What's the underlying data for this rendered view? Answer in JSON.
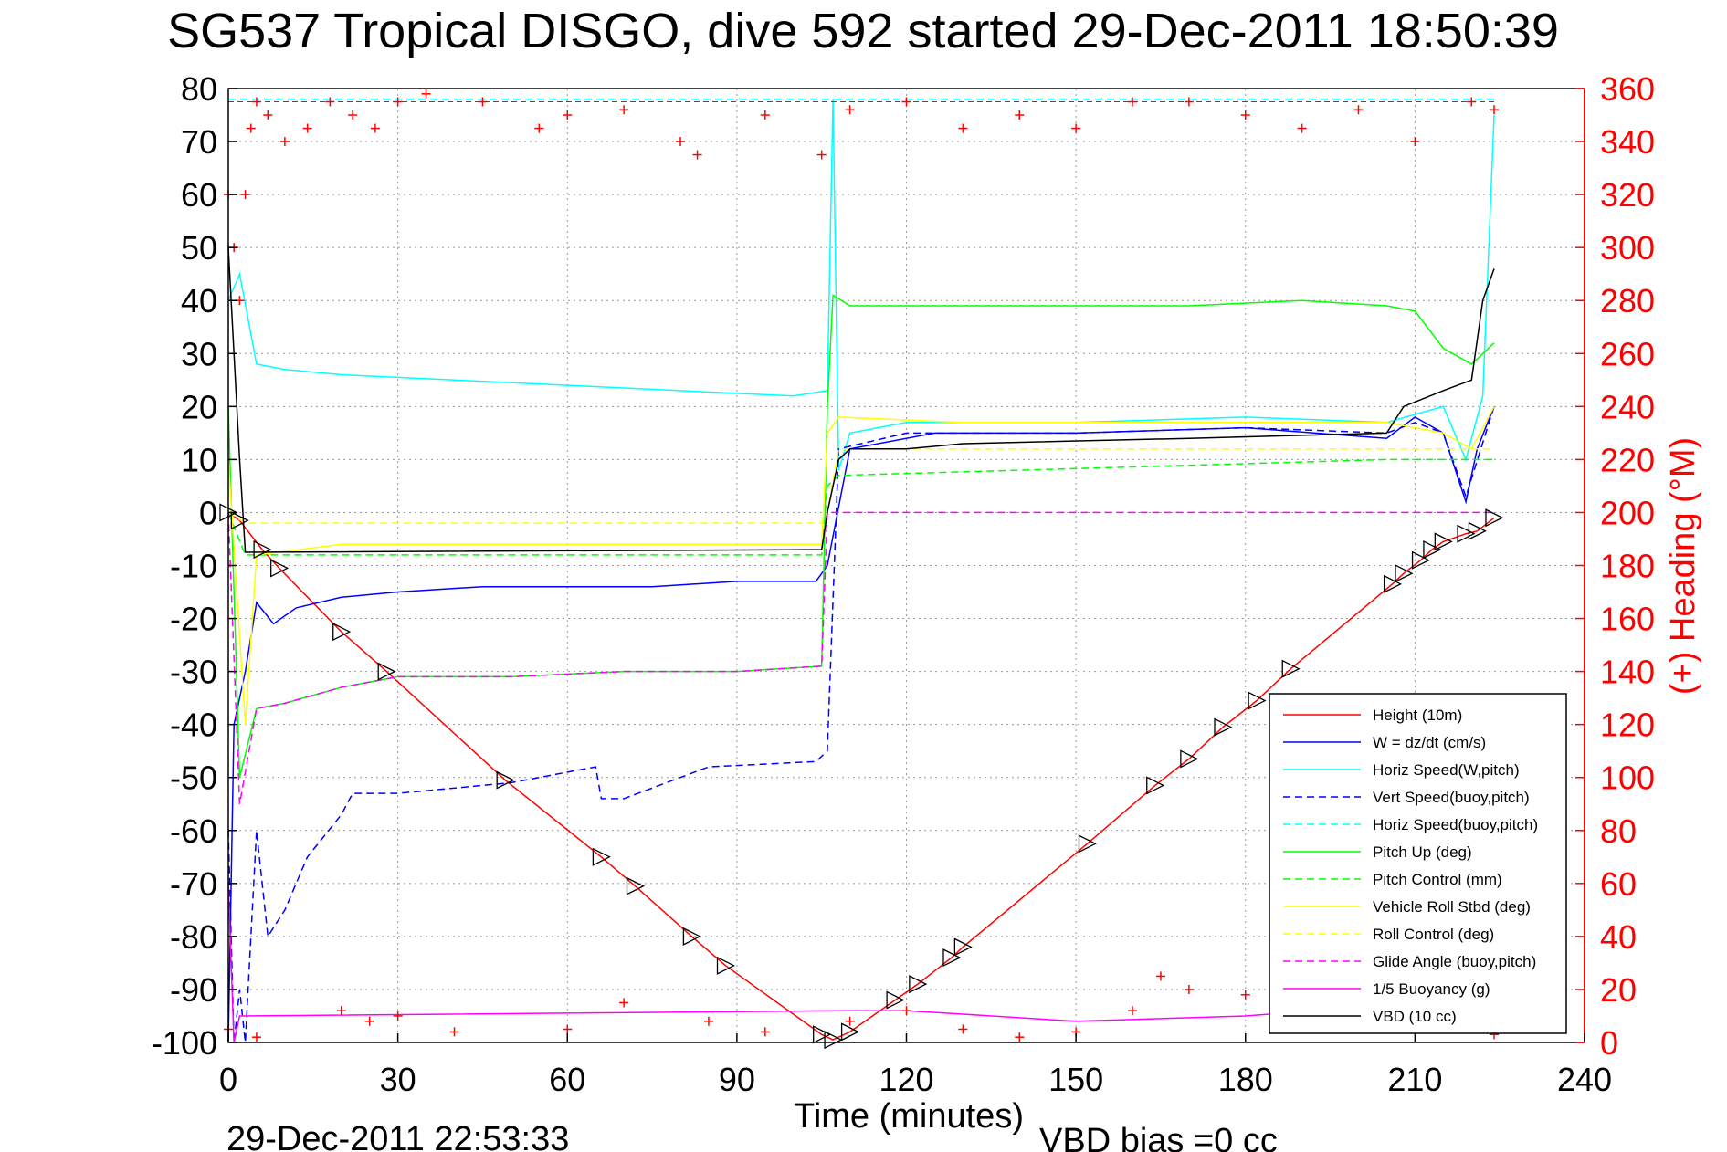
{
  "chart_data": {
    "type": "line",
    "title": "SG537 Tropical DISGO, dive 592 started 29-Dec-2011 18:50:39",
    "xlabel": "Time (minutes)",
    "ylabel": "",
    "y2label": "(+) Heading (°M)",
    "xlim": [
      0,
      240
    ],
    "ylim": [
      -100,
      80
    ],
    "y2lim": [
      0,
      360
    ],
    "xticks": [
      0,
      30,
      60,
      90,
      120,
      150,
      180,
      210,
      240
    ],
    "yticks": [
      80,
      70,
      60,
      50,
      40,
      30,
      20,
      10,
      0,
      -10,
      -20,
      -30,
      -40,
      -50,
      -60,
      -70,
      -80,
      -90,
      -100
    ],
    "y2ticks": [
      360,
      340,
      320,
      300,
      280,
      260,
      240,
      220,
      200,
      180,
      160,
      140,
      120,
      100,
      80,
      60,
      40,
      20,
      0
    ],
    "grid": true,
    "legend_position": "bottom-right",
    "footer_left": "29-Dec-2011 22:53:33",
    "footer_right": "VBD bias =0 cc",
    "colors": {
      "height": "#ff0000",
      "w": "#0000ff",
      "horiz": "#00ffff",
      "vert_buoy": "#0000ff",
      "horiz_buoy": "#00ffff",
      "pitch": "#00ff00",
      "pitch_ctl": "#00ff00",
      "roll": "#ffff00",
      "roll_ctl": "#ffff00",
      "glide": "#ff00ff",
      "buoyancy": "#ff00ff",
      "vbd": "#000000",
      "heading": "#ff0000"
    },
    "series": [
      {
        "name": "Height (10m)",
        "key": "height",
        "style": "solid",
        "x": [
          0,
          2,
          6,
          9,
          20,
          28,
          49,
          66,
          72,
          82,
          88,
          105,
          107,
          110,
          118,
          122,
          128,
          130,
          152,
          164,
          170,
          176,
          182,
          188,
          206,
          208,
          211,
          213,
          215,
          219,
          221,
          224
        ],
        "y": [
          0,
          -1.5,
          -7,
          -10.5,
          -22.5,
          -30,
          -50.5,
          -65,
          -70.5,
          -80,
          -85.5,
          -98.5,
          -99.5,
          -98,
          -92,
          -89,
          -84,
          -82,
          -62.5,
          -51.5,
          -46.5,
          -40.5,
          -35.5,
          -29.5,
          -13.5,
          -11.5,
          -9,
          -7,
          -5.5,
          -4,
          -3.5,
          -1
        ]
      },
      {
        "name": "W = dz/dt (cm/s)",
        "key": "w",
        "style": "solid",
        "x": [
          0,
          1,
          3,
          5,
          8,
          12,
          20,
          30,
          45,
          60,
          75,
          90,
          104,
          106,
          110,
          125,
          150,
          180,
          205,
          210,
          215,
          219,
          221,
          224
        ],
        "y": [
          -100,
          -40,
          -30,
          -17,
          -21,
          -18,
          -16,
          -15,
          -14,
          -14,
          -14,
          -13,
          -13,
          -10,
          12,
          15,
          15,
          16,
          14,
          18,
          15,
          2,
          12,
          20
        ]
      },
      {
        "name": "Horiz Speed(W,pitch)",
        "key": "horiz",
        "style": "solid",
        "x": [
          0,
          2,
          5,
          10,
          20,
          40,
          60,
          80,
          100,
          106,
          107,
          108,
          110,
          120,
          150,
          180,
          205,
          215,
          219,
          222,
          224
        ],
        "y": [
          40,
          45,
          28,
          27,
          26,
          25,
          24,
          23,
          22,
          23,
          78,
          8,
          15,
          17,
          17,
          18,
          17,
          20,
          10,
          22,
          75
        ]
      },
      {
        "name": "Vert Speed(buoy,pitch)",
        "key": "vert_buoy",
        "style": "dashed",
        "x": [
          0,
          1,
          2,
          3,
          5,
          7,
          10,
          14,
          20,
          22,
          30,
          50,
          65,
          66,
          70,
          85,
          104,
          106,
          108,
          120,
          150,
          180,
          205,
          210,
          215,
          219,
          224
        ],
        "y": [
          -60,
          -100,
          -90,
          -100,
          -60,
          -80,
          -75,
          -65,
          -57,
          -53,
          -53,
          -51,
          -48,
          -54,
          -54,
          -48,
          -47,
          -45,
          12,
          15,
          15,
          16,
          15,
          17,
          15,
          3,
          20
        ]
      },
      {
        "name": "Horiz Speed(buoy,pitch)",
        "key": "horiz_buoy",
        "style": "dashed",
        "x": [
          0,
          1,
          2,
          224
        ],
        "y": [
          78,
          78,
          78,
          78
        ]
      },
      {
        "name": "Pitch Up (deg)",
        "key": "pitch",
        "style": "solid",
        "x": [
          0,
          2,
          5,
          10,
          20,
          30,
          50,
          70,
          90,
          105,
          106,
          107,
          110,
          130,
          150,
          170,
          190,
          205,
          210,
          215,
          220,
          224
        ],
        "y": [
          20,
          -50,
          -37,
          -36,
          -33,
          -31,
          -31,
          -30,
          -30,
          -29,
          20,
          41,
          39,
          39,
          39,
          39,
          40,
          39,
          38,
          31,
          28,
          32
        ]
      },
      {
        "name": "Pitch Control (mm)",
        "key": "pitch_ctl",
        "style": "dashed",
        "x": [
          0,
          3,
          105,
          106,
          108,
          205,
          224
        ],
        "y": [
          0,
          -8,
          -8,
          5,
          7,
          10,
          10
        ]
      },
      {
        "name": "Vehicle Roll Stbd (deg)",
        "key": "roll",
        "style": "solid",
        "x": [
          0,
          3,
          5,
          20,
          40,
          60,
          80,
          100,
          105,
          106,
          108,
          130,
          150,
          170,
          190,
          205,
          215,
          220,
          224
        ],
        "y": [
          10,
          -40,
          -8,
          -6,
          -6,
          -6,
          -6,
          -6,
          -6,
          15,
          18,
          17,
          17,
          17,
          17,
          17,
          15,
          12,
          20
        ]
      },
      {
        "name": "Roll Control (deg)",
        "key": "roll_ctl",
        "style": "dashed",
        "x": [
          0,
          3,
          105,
          106,
          108,
          205,
          224
        ],
        "y": [
          0,
          -2,
          -2,
          0,
          12,
          12,
          12
        ]
      },
      {
        "name": "Glide Angle (buoy,pitch)",
        "key": "glide",
        "style": "dashed",
        "x": [
          0,
          2,
          5,
          10,
          20,
          30,
          50,
          70,
          90,
          105,
          106,
          107,
          224
        ],
        "y": [
          0,
          -55,
          -37,
          -36,
          -33,
          -31,
          -31,
          -30,
          -30,
          -29,
          0,
          0,
          0
        ]
      },
      {
        "name": "1/5 Buoyancy (g)",
        "key": "buoyancy",
        "style": "solid",
        "x": [
          0,
          1,
          2,
          110,
          120,
          150,
          180,
          205,
          224
        ],
        "y": [
          -70,
          -100,
          -95,
          -94,
          -94,
          -96,
          -95,
          -93,
          -92
        ]
      },
      {
        "name": "VBD (10 cc)",
        "key": "vbd",
        "style": "solid",
        "x": [
          0,
          1,
          2,
          3,
          105,
          106,
          108,
          110,
          120,
          130,
          170,
          205,
          208,
          215,
          220,
          222,
          224
        ],
        "y": [
          50,
          30,
          10,
          -7.5,
          -7,
          0,
          10,
          12,
          12,
          13,
          14,
          15,
          20,
          23,
          25,
          40,
          46
        ]
      }
    ],
    "heading": {
      "name": "(+) Heading",
      "key": "heading",
      "x": [
        0,
        1,
        2,
        3,
        4,
        5,
        7,
        10,
        14,
        18,
        22,
        26,
        30,
        35,
        45,
        55,
        60,
        70,
        80,
        83,
        95,
        105,
        110,
        120,
        130,
        140,
        150,
        160,
        170,
        180,
        190,
        200,
        210,
        220,
        224
      ],
      "y": [
        320,
        300,
        280,
        320,
        345,
        355,
        350,
        340,
        345,
        355,
        350,
        345,
        355,
        358,
        355,
        345,
        350,
        352,
        340,
        335,
        350,
        335,
        352,
        355,
        345,
        350,
        345,
        355,
        355,
        350,
        345,
        352,
        340,
        355,
        352
      ],
      "x_low": [
        0,
        5,
        20,
        25,
        30,
        40,
        60,
        70,
        85,
        95,
        110,
        120,
        130,
        140,
        150,
        160,
        165,
        170,
        180,
        190,
        200,
        210,
        220,
        224
      ],
      "y_low": [
        5,
        2,
        12,
        8,
        10,
        4,
        5,
        15,
        8,
        4,
        8,
        12,
        5,
        2,
        4,
        12,
        25,
        20,
        18,
        15,
        12,
        8,
        5,
        3
      ]
    },
    "markers_x": [
      0,
      2,
      6,
      9,
      20,
      28,
      49,
      66,
      72,
      82,
      88,
      105,
      107,
      110,
      118,
      122,
      128,
      130,
      152,
      164,
      170,
      176,
      182,
      188,
      206,
      208,
      211,
      213,
      215,
      219,
      221,
      224
    ],
    "markers_y": [
      0,
      -1.5,
      -7,
      -10.5,
      -22.5,
      -30,
      -50.5,
      -65,
      -70.5,
      -80,
      -85.5,
      -98.5,
      -99.5,
      -98,
      -92,
      -89,
      -84,
      -82,
      -62.5,
      -51.5,
      -46.5,
      -40.5,
      -35.5,
      -29.5,
      -13.5,
      -11.5,
      -9,
      -7,
      -5.5,
      -4,
      -3.5,
      -1
    ]
  }
}
